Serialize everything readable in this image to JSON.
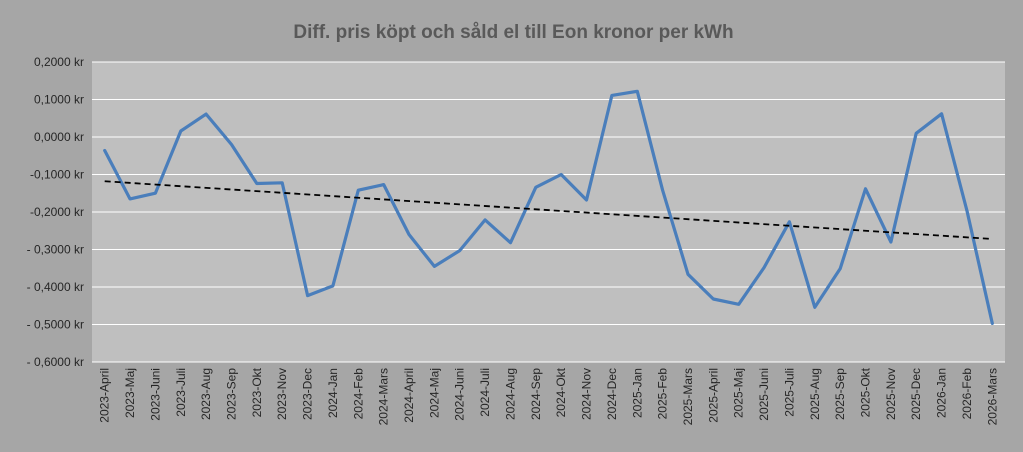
{
  "chart_data": {
    "type": "line",
    "title": "Diff.  pris köpt och såld el till Eon kronor per kWh",
    "xlabel": "",
    "ylabel": "",
    "ylim": [
      -0.6,
      0.2
    ],
    "yticks": [
      0.2,
      0.1,
      0.0,
      -0.1,
      -0.2,
      -0.3,
      -0.4,
      -0.5,
      -0.6
    ],
    "ytick_labels": [
      "0,2000 kr",
      "0,1000 kr",
      "0,0000 kr",
      "-0,1000 kr",
      "-0,2000 kr",
      "- 0,3000 kr",
      "- 0,4000 kr",
      "- 0,5000 kr",
      "- 0,6000 kr"
    ],
    "grid": true,
    "legend": "none",
    "categories": [
      "2023-April",
      "2023-Maj",
      "2023-Juni",
      "2023-Juli",
      "2023-Aug",
      "2023-Sep",
      "2023-Okt",
      "2023-Nov",
      "2023-Dec",
      "2024-Jan",
      "2024-Feb",
      "2024-Mars",
      "2024-April",
      "2024-Maj",
      "2024-Juni",
      "2024-Juli",
      "2024-Aug",
      "2024-Sep",
      "2024-Okt",
      "2024-Nov",
      "2024-Dec",
      "2025-Jan",
      "2025-Feb",
      "2025-Mars",
      "2025-April",
      "2025-Maj",
      "2025-Juni",
      "2025-Juli",
      "2025-Aug",
      "2025-Sep",
      "2025-Okt",
      "2025-Nov",
      "2025-Dec",
      "2026-Jan",
      "2026-Feb",
      "2026-Mars"
    ],
    "series": [
      {
        "color": "#4a7ebb",
        "values": [
          -0.036,
          -0.165,
          -0.15,
          0.016,
          0.061,
          -0.02,
          -0.124,
          -0.122,
          -0.423,
          -0.397,
          -0.142,
          -0.127,
          -0.26,
          -0.345,
          -0.303,
          -0.221,
          -0.282,
          -0.134,
          -0.1,
          -0.168,
          0.111,
          0.122,
          -0.142,
          -0.366,
          -0.432,
          -0.446,
          -0.348,
          -0.226,
          -0.454,
          -0.351,
          -0.138,
          -0.28,
          0.01,
          0.062,
          -0.197,
          -0.497
        ]
      }
    ],
    "trendline": {
      "type": "linear",
      "style": "dashed",
      "color": "#000000",
      "start": -0.118,
      "end": -0.272
    },
    "colors": {
      "background": "#a6a6a6",
      "plot_area": "#bfbfbf",
      "gridline": "#ffffff"
    }
  }
}
